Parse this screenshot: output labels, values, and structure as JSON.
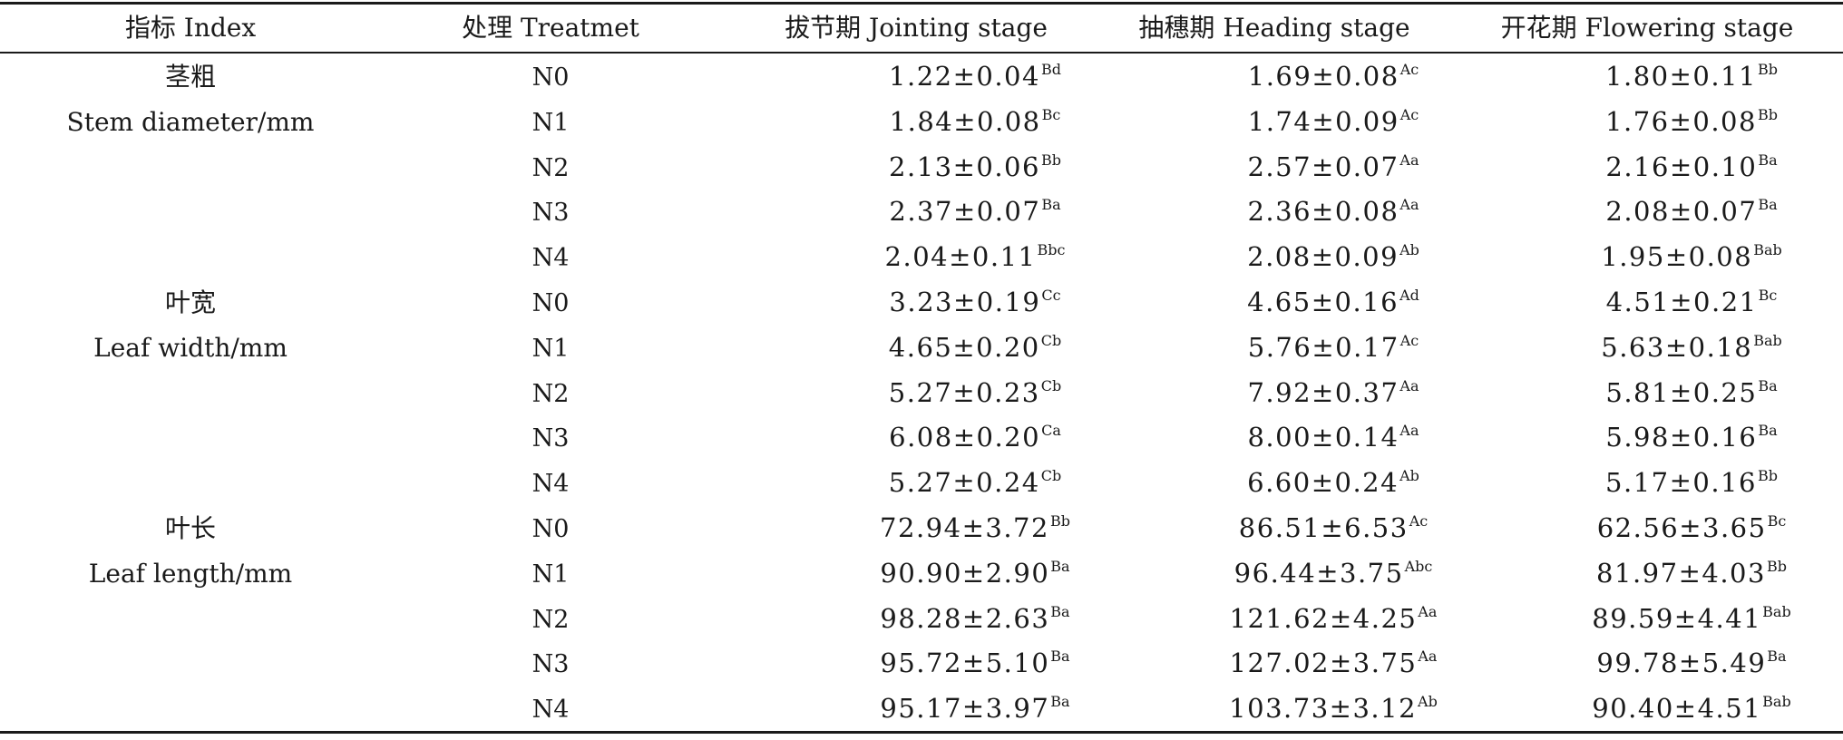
{
  "headers": [
    "指标 Index",
    "处理 Treatmet",
    "拔节期 Jointing stage",
    "抽穗期 Heading stage",
    "开花期 Flowering stage"
  ],
  "indices": [
    {
      "zh": "茎粗",
      "en": "Stem diameter/mm"
    },
    {
      "zh": "叶宽",
      "en": "Leaf width/mm"
    },
    {
      "zh": "叶长",
      "en": "Leaf length/mm"
    }
  ],
  "rows": [
    {
      "t": "N0",
      "c": [
        {
          "v": "1.22±0.04",
          "s": "Bd"
        },
        {
          "v": "1.69±0.08",
          "s": "Ac"
        },
        {
          "v": "1.80±0.11",
          "s": "Bb"
        }
      ]
    },
    {
      "t": "N1",
      "c": [
        {
          "v": "1.84±0.08",
          "s": "Bc"
        },
        {
          "v": "1.74±0.09",
          "s": "Ac"
        },
        {
          "v": "1.76±0.08",
          "s": "Bb"
        }
      ]
    },
    {
      "t": "N2",
      "c": [
        {
          "v": "2.13±0.06",
          "s": "Bb"
        },
        {
          "v": "2.57±0.07",
          "s": "Aa"
        },
        {
          "v": "2.16±0.10",
          "s": "Ba"
        }
      ]
    },
    {
      "t": "N3",
      "c": [
        {
          "v": "2.37±0.07",
          "s": "Ba"
        },
        {
          "v": "2.36±0.08",
          "s": "Aa"
        },
        {
          "v": "2.08±0.07",
          "s": "Ba"
        }
      ]
    },
    {
      "t": "N4",
      "c": [
        {
          "v": "2.04±0.11",
          "s": "Bbc"
        },
        {
          "v": "2.08±0.09",
          "s": "Ab"
        },
        {
          "v": "1.95±0.08",
          "s": "Bab"
        }
      ]
    },
    {
      "t": "N0",
      "c": [
        {
          "v": "3.23±0.19",
          "s": "Cc"
        },
        {
          "v": "4.65±0.16",
          "s": "Ad"
        },
        {
          "v": "4.51±0.21",
          "s": "Bc"
        }
      ]
    },
    {
      "t": "N1",
      "c": [
        {
          "v": "4.65±0.20",
          "s": "Cb"
        },
        {
          "v": "5.76±0.17",
          "s": "Ac"
        },
        {
          "v": "5.63±0.18",
          "s": "Bab"
        }
      ]
    },
    {
      "t": "N2",
      "c": [
        {
          "v": "5.27±0.23",
          "s": "Cb"
        },
        {
          "v": "7.92±0.37",
          "s": "Aa"
        },
        {
          "v": "5.81±0.25",
          "s": "Ba"
        }
      ]
    },
    {
      "t": "N3",
      "c": [
        {
          "v": "6.08±0.20",
          "s": "Ca"
        },
        {
          "v": "8.00±0.14",
          "s": "Aa"
        },
        {
          "v": "5.98±0.16",
          "s": "Ba"
        }
      ]
    },
    {
      "t": "N4",
      "c": [
        {
          "v": "5.27±0.24",
          "s": "Cb"
        },
        {
          "v": "6.60±0.24",
          "s": "Ab"
        },
        {
          "v": "5.17±0.16",
          "s": "Bb"
        }
      ]
    },
    {
      "t": "N0",
      "c": [
        {
          "v": "72.94±3.72",
          "s": "Bb"
        },
        {
          "v": "86.51±6.53",
          "s": "Ac"
        },
        {
          "v": "62.56±3.65",
          "s": "Bc"
        }
      ]
    },
    {
      "t": "N1",
      "c": [
        {
          "v": "90.90±2.90",
          "s": "Ba"
        },
        {
          "v": "96.44±3.75",
          "s": "Abc"
        },
        {
          "v": "81.97±4.03",
          "s": "Bb"
        }
      ]
    },
    {
      "t": "N2",
      "c": [
        {
          "v": "98.28±2.63",
          "s": "Ba"
        },
        {
          "v": "121.62±4.25",
          "s": "Aa"
        },
        {
          "v": "89.59±4.41",
          "s": "Bab"
        }
      ]
    },
    {
      "t": "N3",
      "c": [
        {
          "v": "95.72±5.10",
          "s": "Ba"
        },
        {
          "v": "127.02±3.75",
          "s": "Aa"
        },
        {
          "v": "99.78±5.49",
          "s": "Ba"
        }
      ]
    },
    {
      "t": "N4",
      "c": [
        {
          "v": "95.17±3.97",
          "s": "Ba"
        },
        {
          "v": "103.73±3.12",
          "s": "Ab"
        },
        {
          "v": "90.40±4.51",
          "s": "Bab"
        }
      ]
    }
  ]
}
